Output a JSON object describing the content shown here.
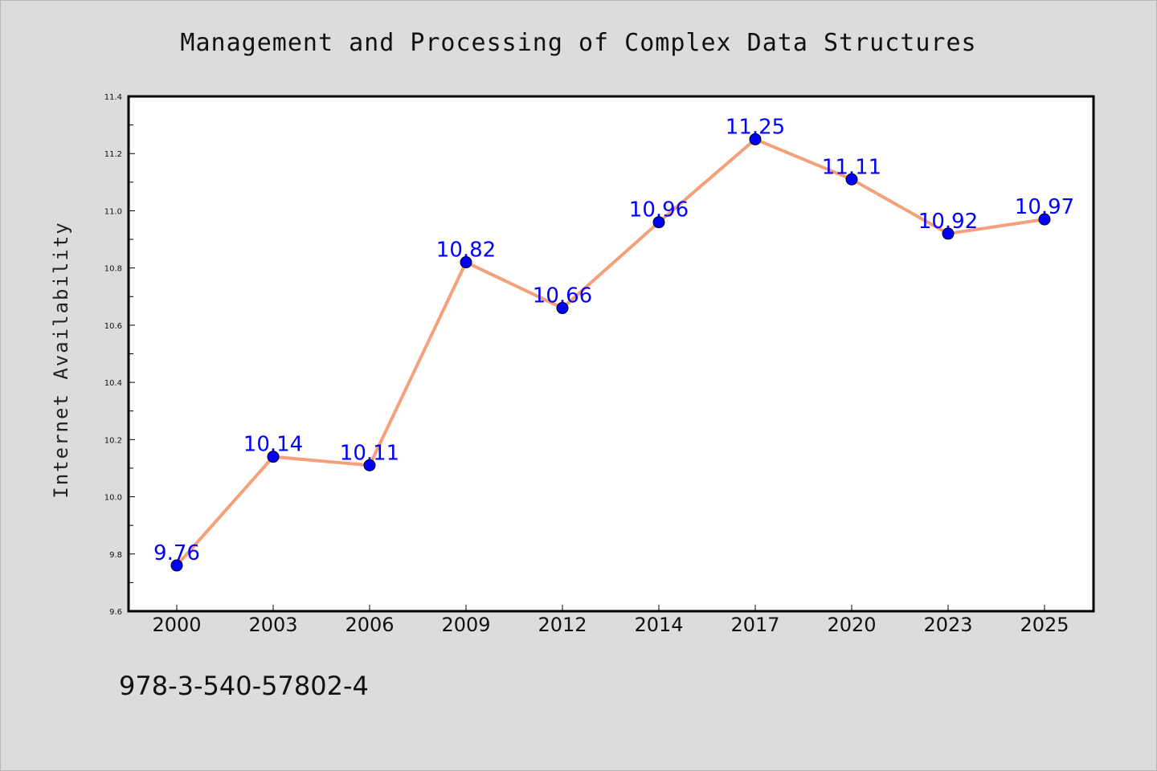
{
  "chart_data": {
    "type": "line",
    "title": "Management and Processing of Complex Data Structures",
    "ylabel": "Internet Availability",
    "xlabel": "",
    "categories": [
      "2000",
      "2003",
      "2006",
      "2009",
      "2012",
      "2014",
      "2017",
      "2020",
      "2023",
      "2025"
    ],
    "series": [
      {
        "values": [
          9.76,
          10.14,
          10.11,
          10.82,
          10.66,
          10.96,
          11.25,
          11.11,
          10.92,
          10.97
        ]
      }
    ],
    "data_labels": [
      "9.76",
      "10.14",
      "10.11",
      "10.82",
      "10.66",
      "10.96",
      "11.25",
      "11.11",
      "10.92",
      "10.97"
    ],
    "ylim": [
      9.6,
      11.4
    ],
    "yticks": [
      "9.6",
      "9.8",
      "10.0",
      "10.2",
      "10.4",
      "10.6",
      "10.8",
      "11.0",
      "11.2",
      "11.4"
    ],
    "grid": false,
    "line_color": "#f4a07a",
    "marker_color": "#0000ff",
    "label_color": "#0000ff",
    "plot_background": "#ffffff",
    "figure_background": "#dcdcdc"
  },
  "footer": {
    "isbn": "978-3-540-57802-4"
  }
}
